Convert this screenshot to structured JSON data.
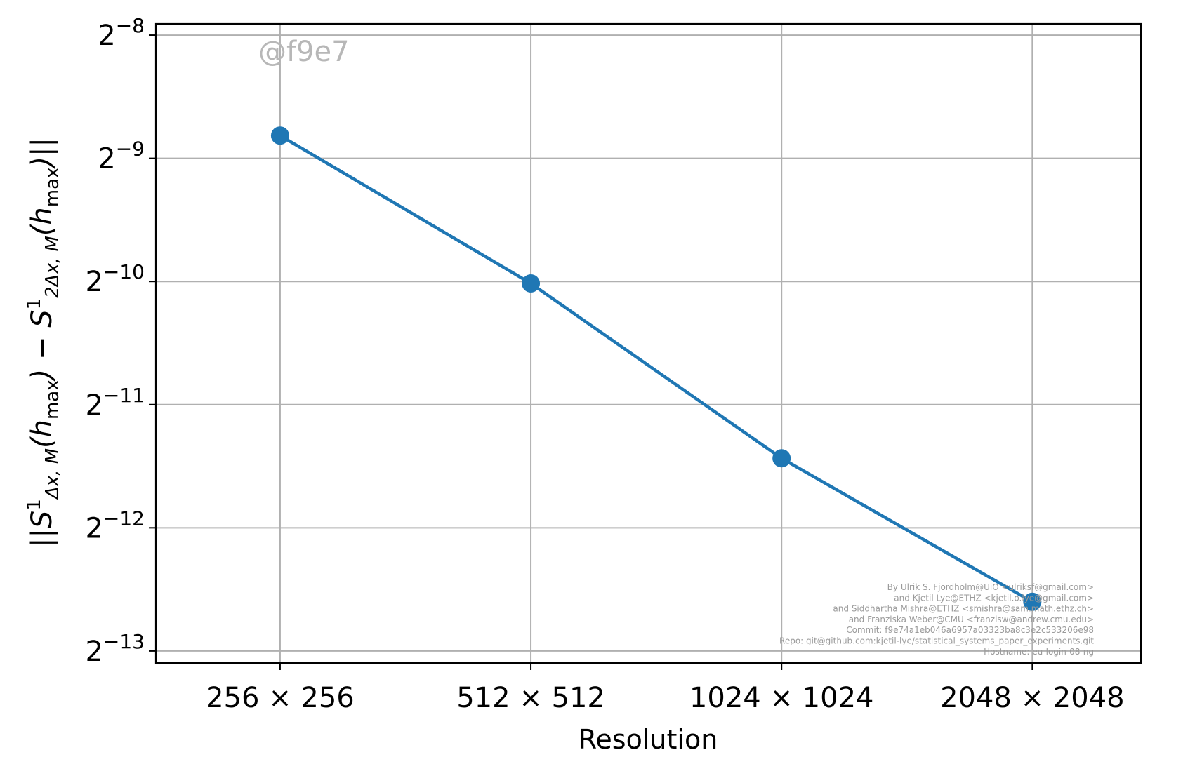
{
  "chart_data": {
    "type": "line",
    "title": "",
    "xlabel": "Resolution",
    "ylabel": {
      "text": "||S^1_{Δx,M}(h_max) − S^1_{2Δx,M}(h_max)||",
      "parts": [
        {
          "t": "||S",
          "style": "italic",
          "shift": "base"
        },
        {
          "t": "1",
          "style": "normal",
          "shift": "sup"
        },
        {
          "t": "Δx, M",
          "style": "italic",
          "shift": "sub"
        },
        {
          "t": "(h",
          "style": "italic",
          "shift": "base"
        },
        {
          "t": "max",
          "style": "normal",
          "shift": "sub"
        },
        {
          "t": ") − S",
          "style": "italic",
          "shift": "base"
        },
        {
          "t": "1",
          "style": "normal",
          "shift": "sup"
        },
        {
          "t": "2Δx, M",
          "style": "italic",
          "shift": "sub"
        },
        {
          "t": "(h",
          "style": "italic",
          "shift": "base"
        },
        {
          "t": "max",
          "style": "normal",
          "shift": "sub"
        },
        {
          "t": ")||",
          "style": "italic",
          "shift": "base"
        }
      ]
    },
    "x_scale": "log2",
    "y_scale": "log2",
    "categories": [
      "256 × 256",
      "512 × 512",
      "1024 × 1024",
      "2048 × 2048"
    ],
    "x": [
      256,
      512,
      1024,
      2048
    ],
    "series": [
      {
        "values": [
          0.00222,
          0.000966,
          0.000361,
          0.000161
        ],
        "color": "#1f77b4"
      }
    ],
    "y_ticks": [
      {
        "base": "2",
        "exp": "−8",
        "value": 0.00390625
      },
      {
        "base": "2",
        "exp": "−9",
        "value": 0.001953125
      },
      {
        "base": "2",
        "exp": "−10",
        "value": 0.0009765625
      },
      {
        "base": "2",
        "exp": "−11",
        "value": 0.00048828125
      },
      {
        "base": "2",
        "exp": "−12",
        "value": 0.000244140625
      },
      {
        "base": "2",
        "exp": "−13",
        "value": 0.0001220703125
      }
    ],
    "xlim": [
      181.6,
      2765
    ],
    "ylim": [
      0.0001141,
      0.004162
    ],
    "grid": true,
    "legend": "none",
    "watermark": "@f9e7",
    "credits": [
      "By Ulrik S. Fjordholm@UiO <ulriksf@gmail.com>",
      "and Kjetil Lye@ETHZ <kjetil.o.lye@gmail.com>",
      "and Siddhartha Mishra@ETHZ <smishra@sam.math.ethz.ch>",
      "and Franziska Weber@CMU <franzisw@andrew.cmu.edu>",
      "Commit: f9e74a1eb046a6957a03323ba8c3e2c533206e98",
      "Repo: git@github.com:kjetil-lye/statistical_systems_paper_experiments.git",
      "Hostname: eu-login-08-ng"
    ],
    "colors": {
      "line": "#1f77b4",
      "grid": "#b0b0b0",
      "axes": "#000000"
    }
  }
}
